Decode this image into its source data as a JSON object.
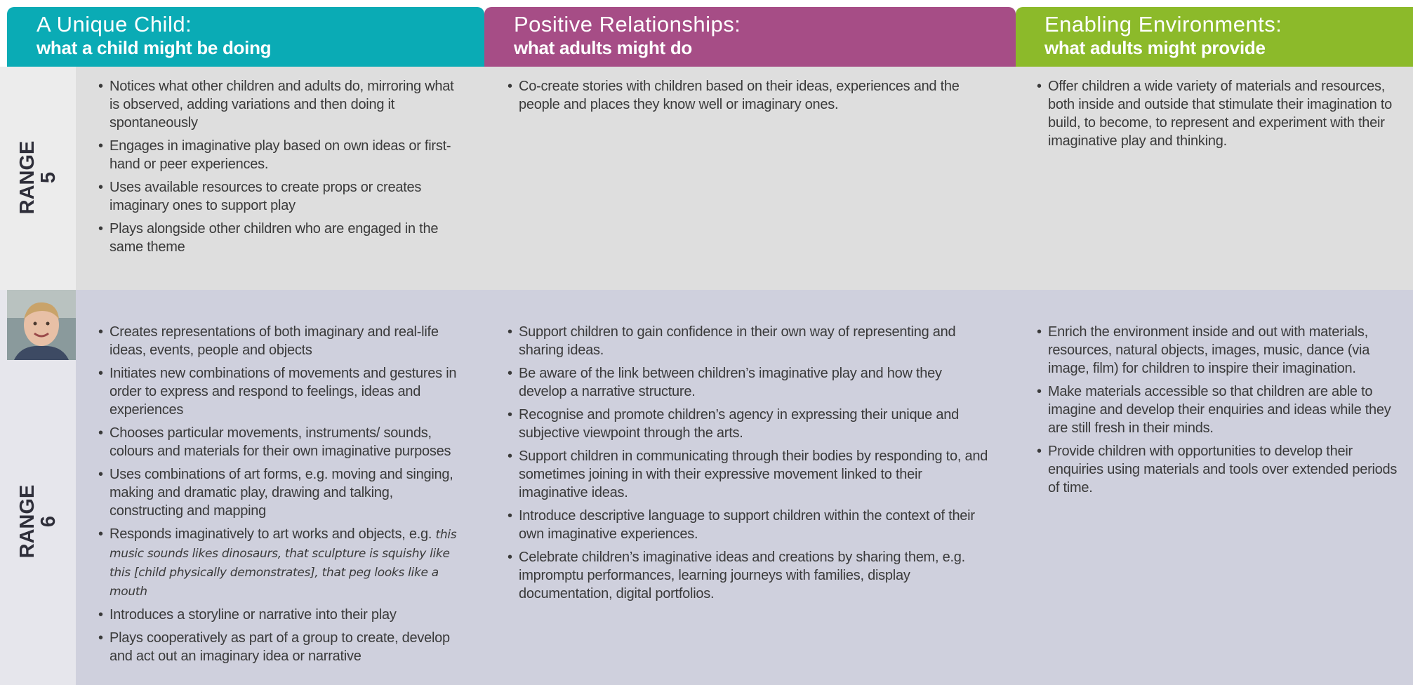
{
  "header": [
    {
      "title": "A Unique Child:",
      "subtitle": "what a child might be doing"
    },
    {
      "title": "Positive Relationships:",
      "subtitle": "what adults might do"
    },
    {
      "title": "Enabling Environments:",
      "subtitle": "what adults might provide"
    }
  ],
  "rows": [
    {
      "label": "RANGE",
      "number": "5",
      "columns": [
        {
          "items": [
            "Notices what other children and adults do, mirroring what is observed, adding variations and then doing it spontaneously",
            "Engages in imaginative play based on own ideas or first-hand or peer experiences.",
            "Uses available resources to create props or creates imaginary ones to support play",
            "Plays alongside other children who are engaged in the same theme"
          ]
        },
        {
          "items": [
            "Co-create stories with children based on their ideas, experiences and the people and places they know well or imaginary ones."
          ]
        },
        {
          "items": [
            "Offer children a wide variety of materials and resources, both inside and outside that stimulate their imagination to build, to become, to represent and experiment with their imaginative play and thinking."
          ]
        }
      ]
    },
    {
      "label": "RANGE",
      "number": "6",
      "columns": [
        {
          "items": [
            "Creates representations of both imaginary and real-life ideas, events, people and objects",
            "Initiates new combinations of movements and gestures in order to express and respond to feelings, ideas and experiences",
            "Chooses particular movements, instruments/ sounds, colours and materials for their own imaginative purposes",
            "Uses combinations of art forms, e.g. moving and singing, making and dramatic play, drawing and talking, constructing and mapping",
            {
              "text": "Responds imaginatively to art works and objects,",
              "eg": "e.g.",
              "example": "this music sounds likes dinosaurs, that sculpture is squishy like this [child physically demonstrates], that peg looks like a mouth"
            },
            "Introduces a storyline or narrative into their play",
            "Plays cooperatively as part of a group to create, develop and act out an imaginary idea or narrative"
          ]
        },
        {
          "items": [
            "Support children to gain confidence in their own way of representing and sharing ideas.",
            "Be aware of the link between children’s imaginative play and how they develop a narrative structure.",
            "Recognise and promote children’s agency in expressing their unique and subjective viewpoint through the arts.",
            "Support children in communicating through their bodies by responding to, and sometimes joining in with their expressive movement linked to their imaginative ideas.",
            "Introduce descriptive language to support children within the context of their own imaginative experiences.",
            "Celebrate children’s imaginative ideas and creations by sharing them, e.g. impromptu performances, learning journeys with families, display documentation, digital portfolios."
          ]
        },
        {
          "items": [
            "Enrich the environment inside and out with materials, resources, natural objects, images, music, dance (via image, film) for children to inspire their imagination.",
            "Make materials accessible so that children are able to imagine and develop their enquiries and ideas while they are still fresh in their minds.",
            "Provide children with opportunities to develop their enquiries using materials and tools over extended periods of time."
          ]
        }
      ]
    }
  ]
}
